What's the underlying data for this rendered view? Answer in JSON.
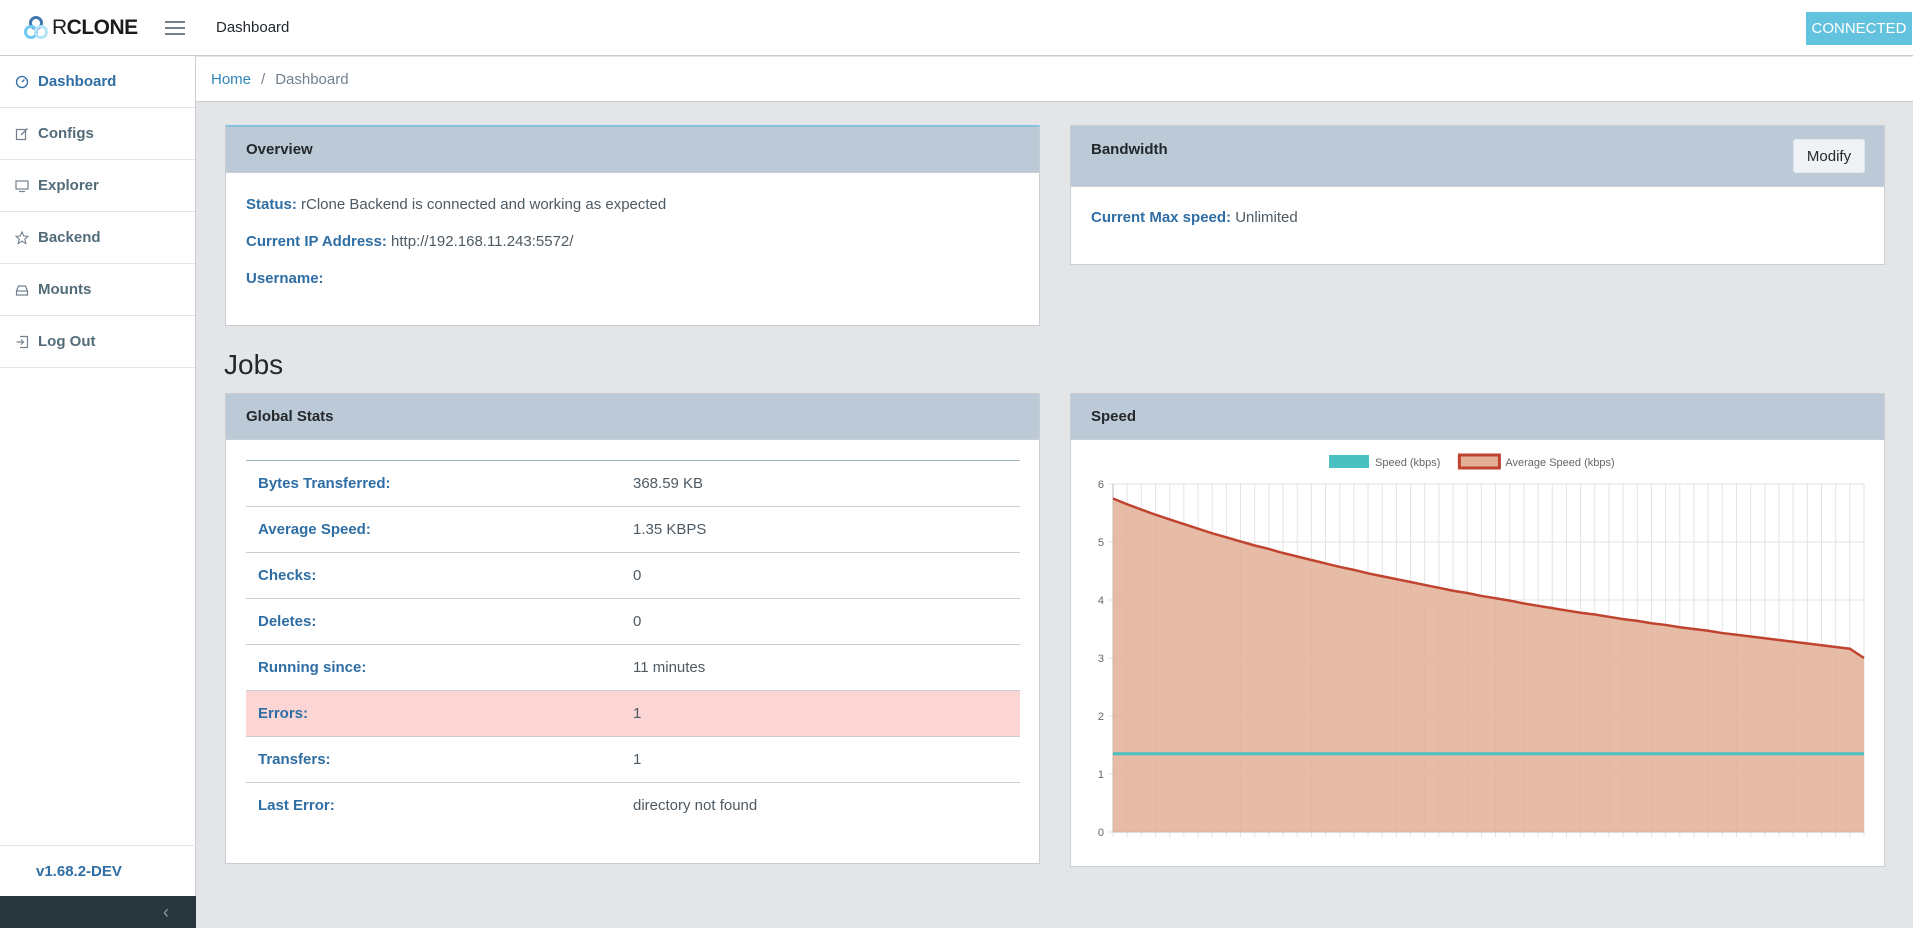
{
  "header": {
    "brand_r": "R",
    "brand_rest": "CLONE",
    "title": "Dashboard",
    "status": "CONNECTED"
  },
  "sidebar": {
    "items": [
      {
        "label": "Dashboard",
        "icon": "speedometer-icon"
      },
      {
        "label": "Configs",
        "icon": "pencil-icon"
      },
      {
        "label": "Explorer",
        "icon": "monitor-icon"
      },
      {
        "label": "Backend",
        "icon": "star-icon"
      },
      {
        "label": "Mounts",
        "icon": "drive-icon"
      },
      {
        "label": "Log Out",
        "icon": "logout-icon"
      }
    ],
    "version": "v1.68.2-DEV",
    "minimize_glyph": "‹"
  },
  "breadcrumb": {
    "home": "Home",
    "separator": "/",
    "current": "Dashboard"
  },
  "overview": {
    "title": "Overview",
    "status_label": "Status:",
    "status_value": "rClone Backend is connected and working as expected",
    "ip_label": "Current IP Address:",
    "ip_value": "http://192.168.11.243:5572/",
    "username_label": "Username:",
    "username_value": ""
  },
  "bandwidth": {
    "title": "Bandwidth",
    "modify_label": "Modify",
    "max_speed_label": "Current Max speed:",
    "max_speed_value": "Unlimited"
  },
  "jobs": {
    "title": "Jobs"
  },
  "global_stats": {
    "title": "Global Stats",
    "rows": [
      {
        "label": "Bytes Transferred:",
        "value": "368.59 KB"
      },
      {
        "label": "Average Speed:",
        "value": "1.35 KBPS"
      },
      {
        "label": "Checks:",
        "value": "0"
      },
      {
        "label": "Deletes:",
        "value": "0"
      },
      {
        "label": "Running since:",
        "value": "11 minutes"
      },
      {
        "label": "Errors:",
        "value": "1"
      },
      {
        "label": "Transfers:",
        "value": "1"
      },
      {
        "label": "Last Error:",
        "value": "directory not found"
      }
    ]
  },
  "speed": {
    "title": "Speed"
  },
  "chart_data": {
    "type": "line",
    "title": "",
    "xlabel": "",
    "ylabel": "",
    "ylim": [
      0,
      6
    ],
    "yticks": [
      0,
      1,
      2,
      3,
      4,
      5,
      6
    ],
    "grid": true,
    "legend_position": "top",
    "num_points": 54,
    "series": [
      {
        "name": "Speed (kbps)",
        "color": "#4bc0c0",
        "fill": false,
        "values": [
          1.35,
          1.35,
          1.35,
          1.35,
          1.35,
          1.35,
          1.35,
          1.35,
          1.35,
          1.35,
          1.35,
          1.35,
          1.35,
          1.35,
          1.35,
          1.35,
          1.35,
          1.35,
          1.35,
          1.35,
          1.35,
          1.35,
          1.35,
          1.35,
          1.35,
          1.35,
          1.35,
          1.35,
          1.35,
          1.35,
          1.35,
          1.35,
          1.35,
          1.35,
          1.35,
          1.35,
          1.35,
          1.35,
          1.35,
          1.35,
          1.35,
          1.35,
          1.35,
          1.35,
          1.35,
          1.35,
          1.35,
          1.35,
          1.35,
          1.35,
          1.35,
          1.35,
          1.35,
          1.35
        ]
      },
      {
        "name": "Average Speed (kbps)",
        "color": "#c0432f",
        "fill_color": "#e2b097",
        "fill": true,
        "values": [
          5.75,
          5.65,
          5.56,
          5.47,
          5.39,
          5.31,
          5.23,
          5.15,
          5.08,
          5.01,
          4.94,
          4.88,
          4.81,
          4.75,
          4.69,
          4.63,
          4.57,
          4.52,
          4.46,
          4.41,
          4.36,
          4.31,
          4.26,
          4.21,
          4.16,
          4.12,
          4.07,
          4.03,
          3.99,
          3.94,
          3.9,
          3.86,
          3.82,
          3.78,
          3.75,
          3.71,
          3.67,
          3.64,
          3.6,
          3.57,
          3.53,
          3.5,
          3.47,
          3.43,
          3.4,
          3.37,
          3.34,
          3.31,
          3.28,
          3.25,
          3.22,
          3.19,
          3.16,
          3.0
        ]
      }
    ]
  }
}
